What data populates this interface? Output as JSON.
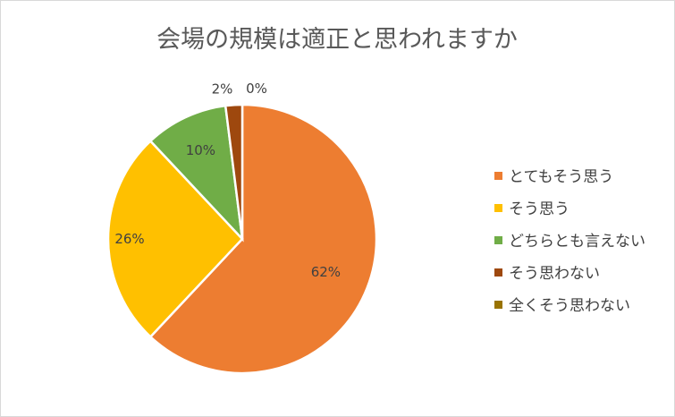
{
  "chart_data": {
    "type": "pie",
    "title": "会場の規模は適正と思われますか",
    "unit": "%",
    "categories": [
      "とてもそう思う",
      "そう思う",
      "どちらとも言えない",
      "そう思わない",
      "全くそう思わない"
    ],
    "values": [
      62,
      26,
      10,
      2,
      0
    ],
    "labels": [
      "62%",
      "26%",
      "10%",
      "2%",
      "0%"
    ],
    "colors": [
      "#ED7D31",
      "#FFC000",
      "#70AD47",
      "#9E480E",
      "#997300"
    ],
    "legend_position": "right",
    "start_angle_deg": 0,
    "direction": "clockwise"
  }
}
